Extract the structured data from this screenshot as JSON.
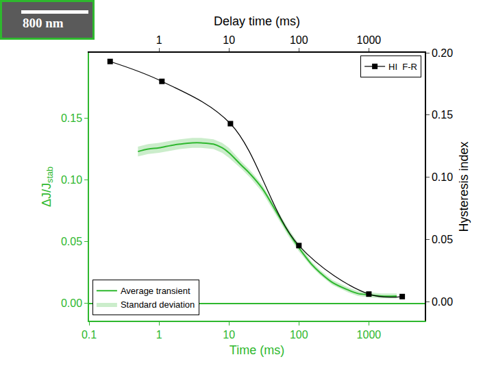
{
  "chart_data": {
    "type": "line",
    "inset_label": "800 nm",
    "xlabel": "Time (ms)",
    "x2label": "Delay time (ms)",
    "ylabel": "ΔJ/J",
    "ylabel_subscript": "stab",
    "y2label": "Hysteresis index",
    "log": "x",
    "grid": false,
    "xlim": [
      0.1,
      6300
    ],
    "xticks": [
      0.1,
      1,
      10,
      100,
      1000
    ],
    "x2lim": [
      0.1,
      6300
    ],
    "x2ticks": [
      1,
      10,
      100,
      1000
    ],
    "ylim": [
      -0.014,
      0.203
    ],
    "yticks": [
      {
        "value": 0,
        "label": "0.00"
      },
      {
        "value": 0.05,
        "label": "0.05"
      },
      {
        "value": 0.1,
        "label": "0.10"
      },
      {
        "value": 0.15,
        "label": "0.15"
      }
    ],
    "y2lim": [
      -0.0154,
      0.2
    ],
    "y2ticks": [
      {
        "value": 0,
        "label": "0.00"
      },
      {
        "value": 0.05,
        "label": "0.05"
      },
      {
        "value": 0.1,
        "label": "0.10"
      },
      {
        "value": 0.15,
        "label": "0.15"
      },
      {
        "value": 0.2,
        "label": "0.20"
      }
    ],
    "series": [
      {
        "name": "Average transient",
        "std_name": "Standard deviation",
        "color": "#2eb82e",
        "line_style": "solid",
        "legend": "lower left",
        "x": [
          0.5,
          0.7,
          1,
          1.5,
          2,
          3,
          4,
          6,
          8,
          10,
          15,
          20,
          30,
          50,
          70,
          100,
          150,
          200,
          300,
          500,
          700,
          1000,
          1500,
          2500
        ],
        "values": [
          0.123,
          0.125,
          0.126,
          0.128,
          0.129,
          0.13,
          0.13,
          0.129,
          0.126,
          0.122,
          0.112,
          0.105,
          0.093,
          0.072,
          0.058,
          0.045,
          0.032,
          0.025,
          0.017,
          0.011,
          0.008,
          0.007,
          0.006,
          0.006
        ],
        "std": [
          0.004,
          0.004,
          0.004,
          0.004,
          0.004,
          0.004,
          0.004,
          0.004,
          0.004,
          0.004,
          0.003,
          0.003,
          0.003,
          0.003,
          0.003,
          0.003,
          0.002,
          0.002,
          0.002,
          0.002,
          0.002,
          0.002,
          0.002,
          0.002
        ]
      },
      {
        "name": "HI  F-R",
        "color": "#000000",
        "marker": "square",
        "line_style": "solid",
        "axis": "y2",
        "legend": "upper right",
        "x": [
          0.2,
          1.1,
          10.5,
          100,
          1000,
          3000
        ],
        "values": [
          0.193,
          0.177,
          0.143,
          0.045,
          0.006,
          0.004
        ]
      }
    ]
  }
}
